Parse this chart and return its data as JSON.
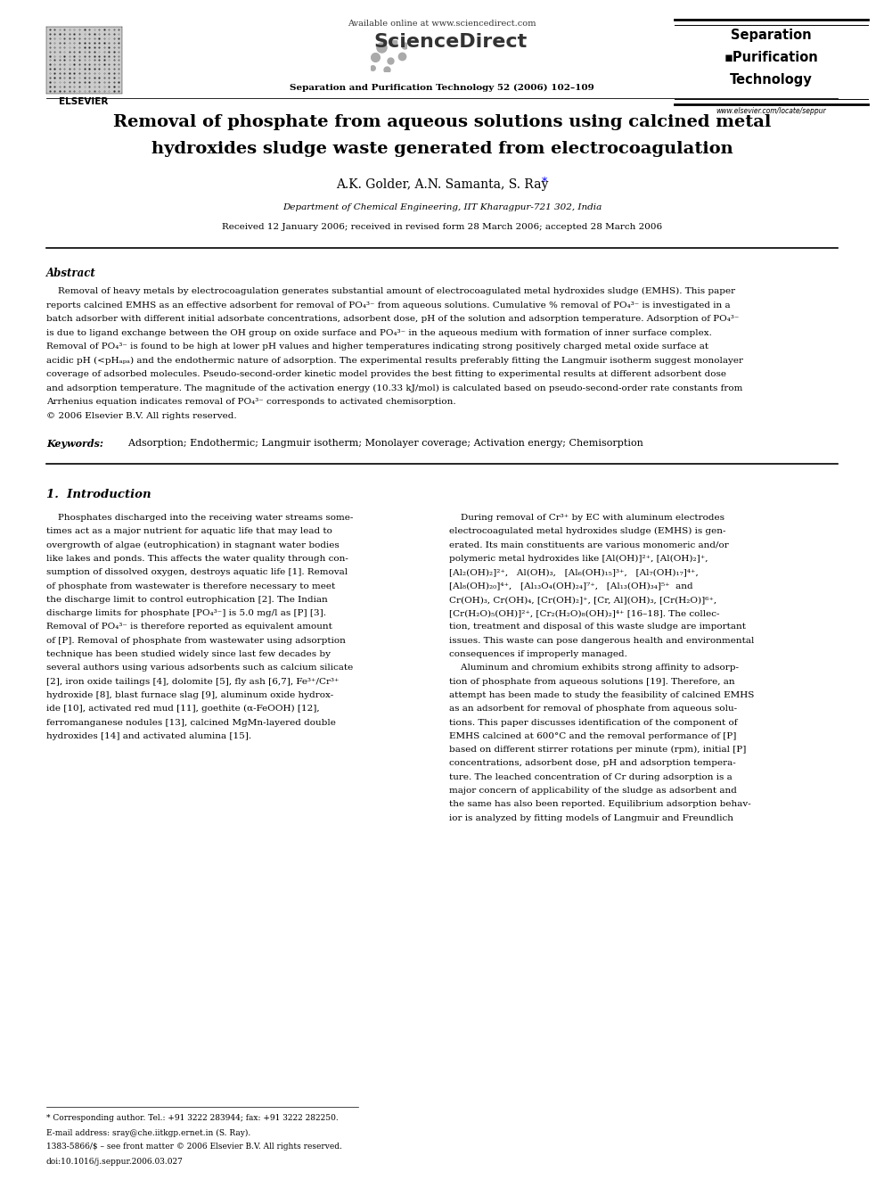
{
  "page_width": 9.92,
  "page_height": 13.23,
  "bg_color": "#ffffff",
  "available_online": "Available online at www.sciencedirect.com",
  "sciencedirect": "ScienceDirect",
  "journal_name": "Separation and Purification Technology 52 (2006) 102–109",
  "journal_sidebar_1": "Separation",
  "journal_sidebar_2": "▪Purification",
  "journal_sidebar_3": "Technology",
  "journal_url": "www.elsevier.com/locate/seppur",
  "elsevier_text": "ELSEVIER",
  "title_line1": "Removal of phosphate from aqueous solutions using calcined metal",
  "title_line2": "hydroxides sludge waste generated from electrocoagulation",
  "authors": "A.K. Golder, A.N. Samanta, S. Ray",
  "affiliation": "Department of Chemical Engineering, IIT Kharagpur-721 302, India",
  "received": "Received 12 January 2006; received in revised form 28 March 2006; accepted 28 March 2006",
  "abstract_title": "Abstract",
  "abstract_text": "    Removal of heavy metals by electrocoagulation generates substantial amount of electrocoagulated metal hydroxides sludge (EMHS). This paper reports calcined EMHS as an effective adsorbent for removal of PO₄³⁻ from aqueous solutions. Cumulative % removal of PO₄³⁻ is investigated in a batch adsorber with different initial adsorbate concentrations, adsorbent dose, pH of the solution and adsorption temperature. Adsorption of PO₄³⁻ is due to ligand exchange between the OH group on oxide surface and PO₄³⁻ in the aqueous medium with formation of inner surface complex. Removal of PO₄³⁻ is found to be high at lower pH values and higher temperatures indicating strong positively charged metal oxide surface at acidic pH (<pHₐₚₐ) and the endothermic nature of adsorption. The experimental results preferably fitting the Langmuir isotherm suggest monolayer coverage of adsorbed molecules. Pseudo-second-order kinetic model provides the best fitting to experimental results at different adsorbent dose and adsorption temperature. The magnitude of the activation energy (10.33 kJ/mol) is calculated based on pseudo-second-order rate constants from Arrhenius equation indicates removal of PO₄³⁻ corresponds to activated chemisorption.\n© 2006 Elsevier B.V. All rights reserved.",
  "keywords_label": "Keywords:",
  "keywords_text": "  Adsorption; Endothermic; Langmuir isotherm; Monolayer coverage; Activation energy; Chemisorption",
  "section1_title": "1.  Introduction",
  "intro_left": "    Phosphates discharged into the receiving water streams some-\ntimes act as a major nutrient for aquatic life that may lead to\novergrowth of algae (eutrophication) in stagnant water bodies\nlike lakes and ponds. This affects the water quality through con-\nsumption of dissolved oxygen, destroys aquatic life [1]. Removal\nof phosphate from wastewater is therefore necessary to meet\nthe discharge limit to control eutrophication [2]. The Indian\ndischarge limits for phosphate [PO₄³⁻] is 5.0 mg/l as [P] [3].\nRemoval of PO₄³⁻ is therefore reported as equivalent amount\nof [P]. Removal of phosphate from wastewater using adsorption\ntechnique has been studied widely since last few decades by\nseveral authors using various adsorbents such as calcium silicate\n[2], iron oxide tailings [4], dolomite [5], fly ash [6,7], Fe³⁺/Cr³⁺\nhydroxide [8], blast furnace slag [9], aluminum oxide hydrox-\nide [10], activated red mud [11], goethite (α-FeOOH) [12],\nferromanganese nodules [13], calcined MgMn-layered double\nhydroxides [14] and activated alumina [15].",
  "intro_right": "    During removal of Cr³⁺ by EC with aluminum electrodes\nelectrocoagulated metal hydroxides sludge (EMHS) is gen-\nerated. Its main constituents are various monomeric and/or\npolymeric metal hydroxides like [Al(OH)]²⁺, [Al(OH)₂]⁺,\n[Al₂(OH)₂]²⁺,   Al(OH)₃,   [Al₆(OH)₁₅]³⁺,   [Al₇(OH)₁₇]⁴⁺,\n[Al₈(OH)₂₀]⁴⁺,   [Al₁₃O₄(OH)₂₄]⁷⁺,   [Al₁₃(OH)₃₄]⁵⁺  and\nCr(OH)₃, Cr(OH)₄, [Cr(OH)₂]⁺, [Cr, Al](OH)₃, [Cr(H₂O)]⁶⁺,\n[Cr(H₂O)₅(OH)]²⁺, [Cr₂(H₂O)₈(OH)₂]⁴⁺ [16–18]. The collec-\ntion, treatment and disposal of this waste sludge are important\nissues. This waste can pose dangerous health and environmental\nconsequences if improperly managed.\n    Aluminum and chromium exhibits strong affinity to adsorp-\ntion of phosphate from aqueous solutions [19]. Therefore, an\nattempt has been made to study the feasibility of calcined EMHS\nas an adsorbent for removal of phosphate from aqueous solu-\ntions. This paper discusses identification of the component of\nEMHS calcined at 600°C and the removal performance of [P]\nbased on different stirrer rotations per minute (rpm), initial [P]\nconcentrations, adsorbent dose, pH and adsorption tempera-\nture. The leached concentration of Cr during adsorption is a\nmajor concern of applicability of the sludge as adsorbent and\nthe same has also been reported. Equilibrium adsorption behav-\nior is analyzed by fitting models of Langmuir and Freundlich",
  "footnote_star": "* Corresponding author. Tel.: +91 3222 283944; fax: +91 3222 282250.",
  "footnote_email": "E-mail address: sray@che.iitkgp.ernet.in (S. Ray).",
  "footnote_issn": "1383-5866/$ – see front matter © 2006 Elsevier B.V. All rights reserved.",
  "footnote_doi": "doi:10.1016/j.seppur.2006.03.027"
}
